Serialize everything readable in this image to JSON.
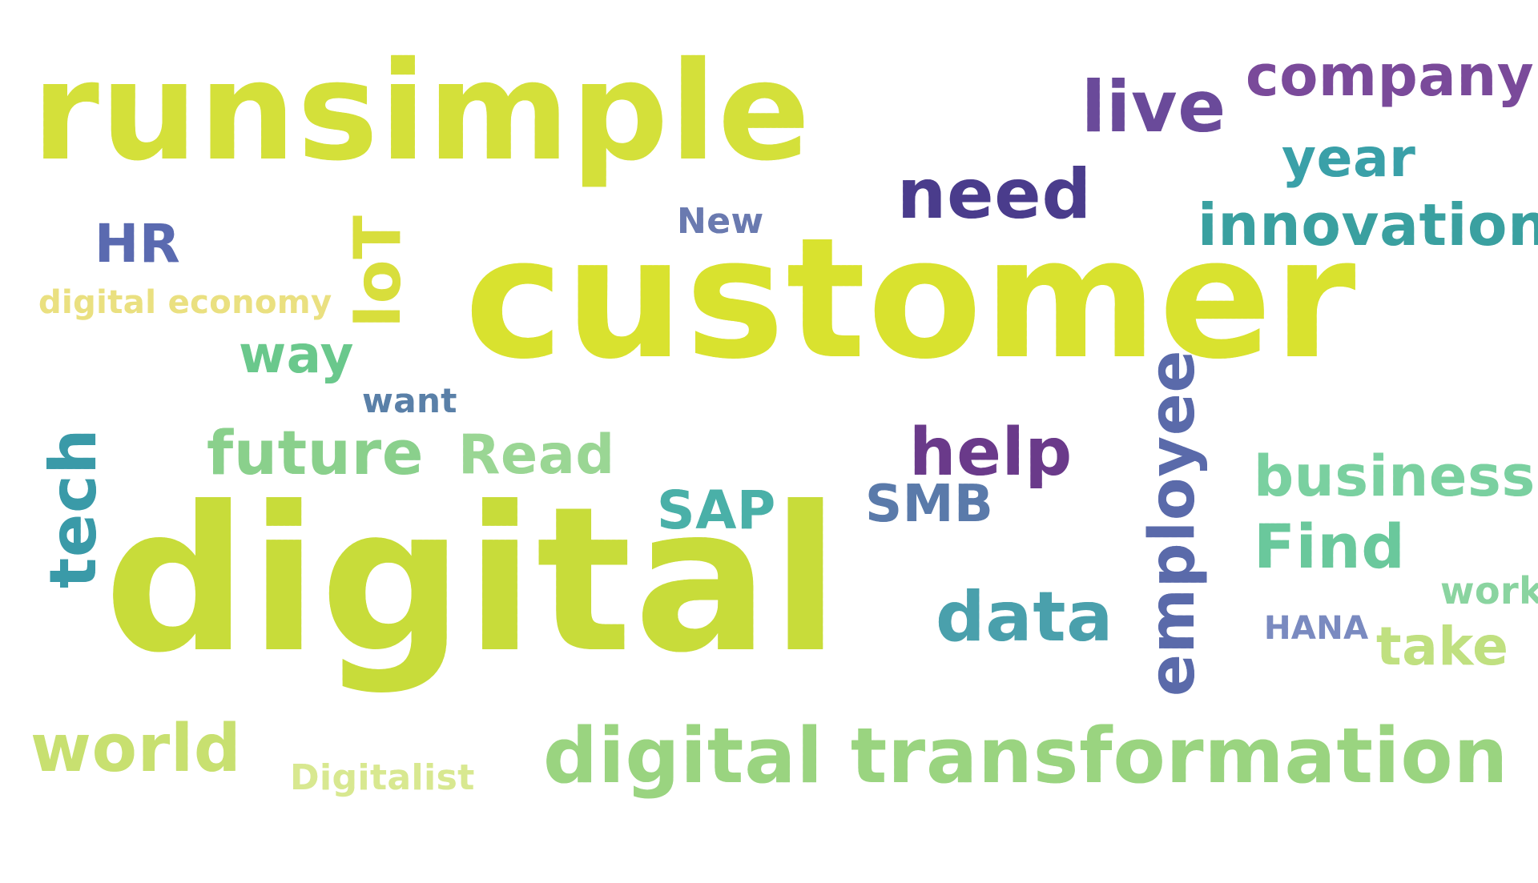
{
  "cloud": {
    "words": [
      {
        "id": "runsimple",
        "text": "runsimple",
        "color": "#d4e03a"
      },
      {
        "id": "customer",
        "text": "customer",
        "color": "#d9e22f"
      },
      {
        "id": "digital",
        "text": "digital",
        "color": "#c8dc3a"
      },
      {
        "id": "company",
        "text": "company",
        "color": "#7a4a9a"
      },
      {
        "id": "live",
        "text": "live",
        "color": "#6a4a9a"
      },
      {
        "id": "year",
        "text": "year",
        "color": "#3aa0a8"
      },
      {
        "id": "need",
        "text": "need",
        "color": "#4a3c8c"
      },
      {
        "id": "innovation",
        "text": "innovation",
        "color": "#3aa0a0"
      },
      {
        "id": "new",
        "text": "New",
        "color": "#6a7ab0"
      },
      {
        "id": "hr",
        "text": "HR",
        "color": "#5a6ab0"
      },
      {
        "id": "iot",
        "text": "IoT",
        "color": "#d8de3c"
      },
      {
        "id": "digital-economy",
        "text": "digital economy",
        "color": "#eae080"
      },
      {
        "id": "way",
        "text": "way",
        "color": "#6ac88c"
      },
      {
        "id": "want",
        "text": "want",
        "color": "#5a80a8"
      },
      {
        "id": "tech",
        "text": "tech",
        "color": "#3a9aa8"
      },
      {
        "id": "future",
        "text": "future",
        "color": "#8ad08c"
      },
      {
        "id": "read",
        "text": "Read",
        "color": "#9ad694"
      },
      {
        "id": "help",
        "text": "help",
        "color": "#6a3a8a"
      },
      {
        "id": "sap",
        "text": "SAP",
        "color": "#4ab0a8"
      },
      {
        "id": "smb",
        "text": "SMB",
        "color": "#5a7aaa"
      },
      {
        "id": "employee",
        "text": "employee",
        "color": "#5a6aaa"
      },
      {
        "id": "business",
        "text": "business",
        "color": "#7ad0a0"
      },
      {
        "id": "find",
        "text": "Find",
        "color": "#6ac89c"
      },
      {
        "id": "data",
        "text": "data",
        "color": "#4aa0ac"
      },
      {
        "id": "work",
        "text": "work",
        "color": "#8ad4a0"
      },
      {
        "id": "hana",
        "text": "HANA",
        "color": "#7a8ac0"
      },
      {
        "id": "take",
        "text": "take",
        "color": "#c0e080"
      },
      {
        "id": "world",
        "text": "world",
        "color": "#c8e070"
      },
      {
        "id": "digitalist",
        "text": "Digitalist",
        "color": "#d8e890"
      },
      {
        "id": "digital-transformation",
        "text": "digital transformation",
        "color": "#9ad480"
      }
    ]
  }
}
